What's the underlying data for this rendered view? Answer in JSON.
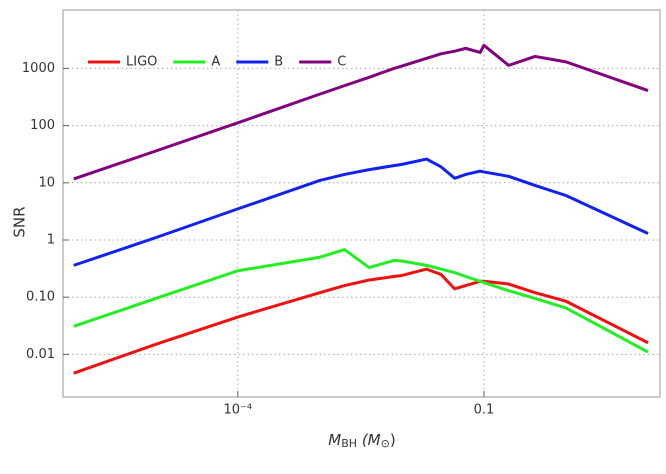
{
  "chart_data": {
    "type": "line",
    "ylabel": "SNR",
    "xlabel_parts": [
      "M",
      "BH",
      " (M",
      "⊙",
      ")"
    ],
    "x": [
      1e-06,
      1e-05,
      0.0001,
      0.001,
      0.002,
      0.004,
      0.008,
      0.01,
      0.02,
      0.03,
      0.044,
      0.06,
      0.09,
      0.1,
      0.2,
      0.42,
      1,
      10
    ],
    "series": [
      {
        "name": "LIGO",
        "color": "#ee1111",
        "values": [
          0.0047,
          0.015,
          0.045,
          0.12,
          0.16,
          0.2,
          0.23,
          0.24,
          0.31,
          0.25,
          0.14,
          0.16,
          0.19,
          0.19,
          0.17,
          0.12,
          0.085,
          0.016
        ]
      },
      {
        "name": "A",
        "color": "#22ee22",
        "values": [
          0.031,
          0.095,
          0.29,
          0.5,
          0.68,
          0.33,
          0.44,
          0.43,
          0.36,
          0.31,
          0.27,
          0.23,
          0.19,
          0.18,
          0.13,
          0.095,
          0.065,
          0.011
        ]
      },
      {
        "name": "B",
        "color": "#1122ee",
        "values": [
          0.36,
          1.1,
          3.5,
          11,
          14,
          17,
          20,
          21,
          26,
          19,
          12,
          14,
          16,
          15.5,
          13,
          9,
          6,
          1.3
        ]
      },
      {
        "name": "C",
        "color": "#800080",
        "values": [
          11.7,
          36,
          112,
          355,
          500,
          700,
          1000,
          1100,
          1500,
          1800,
          2000,
          2240,
          1900,
          2530,
          1130,
          1620,
          1300,
          410
        ]
      }
    ],
    "xscale": "log",
    "yscale": "log",
    "xlim": [
      7.4e-07,
      14
    ],
    "ylim": [
      0.0018,
      10500
    ],
    "xticks": [
      {
        "value": 0.0001,
        "label": "10⁻⁴"
      },
      0.1
    ],
    "yticks": [
      0.01,
      {
        "value": 0.1,
        "label": "0.10"
      },
      1,
      10,
      100,
      1000
    ],
    "grid": true,
    "legend": "top-left"
  }
}
